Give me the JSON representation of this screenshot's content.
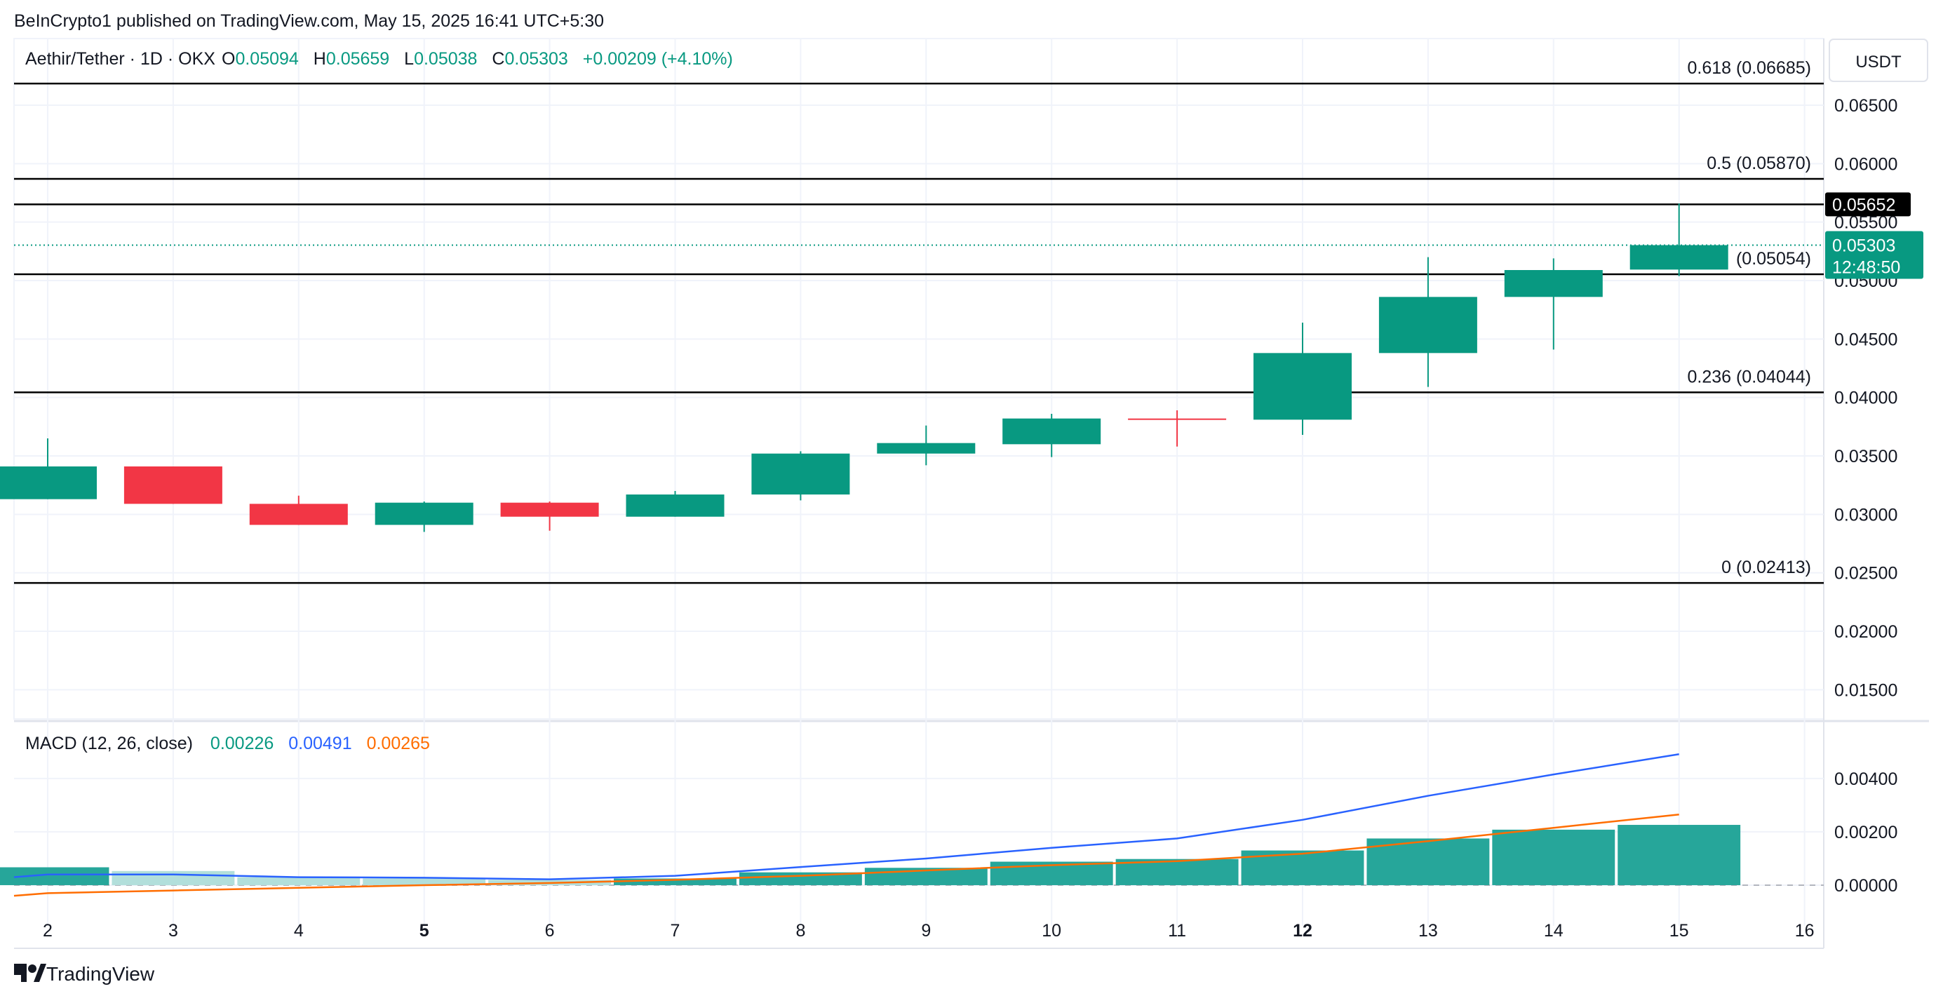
{
  "header": {
    "publisher_line": "BeInCrypto1 published on TradingView.com, May 15, 2025 16:41 UTC+5:30"
  },
  "legend": {
    "symbol": "Aethir/Tether · 1D · OKX",
    "o_label": "O",
    "o_value": "0.05094",
    "h_label": "H",
    "h_value": "0.05659",
    "l_label": "L",
    "l_value": "0.05038",
    "c_label": "C",
    "c_value": "0.05303",
    "change": "+0.00209 (+4.10%)"
  },
  "price_axis": {
    "currency_button": "USDT",
    "ticks": [
      "0.06500",
      "0.06000",
      "0.05500",
      "0.05000",
      "0.04500",
      "0.04000",
      "0.03500",
      "0.03000",
      "0.02500",
      "0.02000",
      "0.01500"
    ],
    "last_price_label": "0.05303",
    "countdown_label": "12:48:50",
    "crosshair_price_label": "0.05652"
  },
  "fib_levels": [
    {
      "label": "0.618 (0.06685)",
      "value": 0.06685
    },
    {
      "label": "0.5 (0.05870)",
      "value": 0.0587
    },
    {
      "label": "(0.05054)",
      "value": 0.05054
    },
    {
      "label": "0.236 (0.04044)",
      "value": 0.04044
    },
    {
      "label": "0 (0.02413)",
      "value": 0.02413
    }
  ],
  "horizontal_line_value": 0.05652,
  "macd": {
    "title": "MACD (12, 26, close)",
    "hist_value": "0.00226",
    "macd_value": "0.00491",
    "signal_value": "0.00265",
    "ticks": [
      "0.00400",
      "0.00200",
      "0.00000"
    ]
  },
  "x_axis": {
    "labels": [
      "2",
      "3",
      "4",
      "5",
      "6",
      "7",
      "8",
      "9",
      "10",
      "11",
      "12",
      "13",
      "14",
      "15",
      "16"
    ],
    "bold": [
      "5",
      "12"
    ]
  },
  "footer": {
    "brand": "TradingView"
  },
  "colors": {
    "up": "#089981",
    "down": "#f23645",
    "macd_line": "#2962ff",
    "signal_line": "#ff6d00",
    "hist_up": "#26a69a",
    "hist_fade": "#b2dfdb",
    "grid": "#f0f3fa",
    "text": "#131722"
  },
  "chart_data": {
    "type": "candlestick",
    "title": "Aethir/Tether · 1D · OKX",
    "x": [
      "2",
      "3",
      "4",
      "5",
      "6",
      "7",
      "8",
      "9",
      "10",
      "11",
      "12",
      "13",
      "14",
      "15"
    ],
    "ohlc": [
      {
        "o": 0.0313,
        "h": 0.0365,
        "l": 0.0313,
        "c": 0.0341
      },
      {
        "o": 0.0341,
        "h": 0.0341,
        "l": 0.0309,
        "c": 0.0309
      },
      {
        "o": 0.0309,
        "h": 0.0316,
        "l": 0.0291,
        "c": 0.0291
      },
      {
        "o": 0.0291,
        "h": 0.0311,
        "l": 0.0285,
        "c": 0.031
      },
      {
        "o": 0.031,
        "h": 0.0311,
        "l": 0.0286,
        "c": 0.0298
      },
      {
        "o": 0.0298,
        "h": 0.032,
        "l": 0.0298,
        "c": 0.0317
      },
      {
        "o": 0.0317,
        "h": 0.0354,
        "l": 0.0312,
        "c": 0.0352
      },
      {
        "o": 0.0352,
        "h": 0.0376,
        "l": 0.0342,
        "c": 0.0361
      },
      {
        "o": 0.036,
        "h": 0.0386,
        "l": 0.0349,
        "c": 0.0382
      },
      {
        "o": 0.0382,
        "h": 0.0389,
        "l": 0.0358,
        "c": 0.0381
      },
      {
        "o": 0.0381,
        "h": 0.0464,
        "l": 0.0368,
        "c": 0.0438
      },
      {
        "o": 0.0438,
        "h": 0.052,
        "l": 0.0409,
        "c": 0.0486
      },
      {
        "o": 0.0486,
        "h": 0.0519,
        "l": 0.0441,
        "c": 0.0509
      },
      {
        "o": 0.05094,
        "h": 0.05659,
        "l": 0.05038,
        "c": 0.05303
      }
    ],
    "ylim": [
      0.0125,
      0.0707
    ],
    "macd_histogram": [
      0.00067,
      0.00053,
      0.0003,
      0.00025,
      0.0002,
      0.00025,
      0.00048,
      0.00065,
      0.00088,
      0.00098,
      0.0013,
      0.00175,
      0.00208,
      0.00226
    ],
    "macd_line": [
      0.0004,
      0.0004,
      0.0003,
      0.00028,
      0.00022,
      0.00035,
      0.00068,
      0.001,
      0.0014,
      0.00175,
      0.00245,
      0.00335,
      0.00415,
      0.00491
    ],
    "signal_line": [
      -0.0003,
      -0.0002,
      -0.0001,
      0.0,
      8e-05,
      0.0002,
      0.00035,
      0.00055,
      0.00075,
      0.0009,
      0.00118,
      0.00165,
      0.00215,
      0.00265
    ],
    "macd_ylim": [
      -0.001,
      0.0061
    ]
  }
}
